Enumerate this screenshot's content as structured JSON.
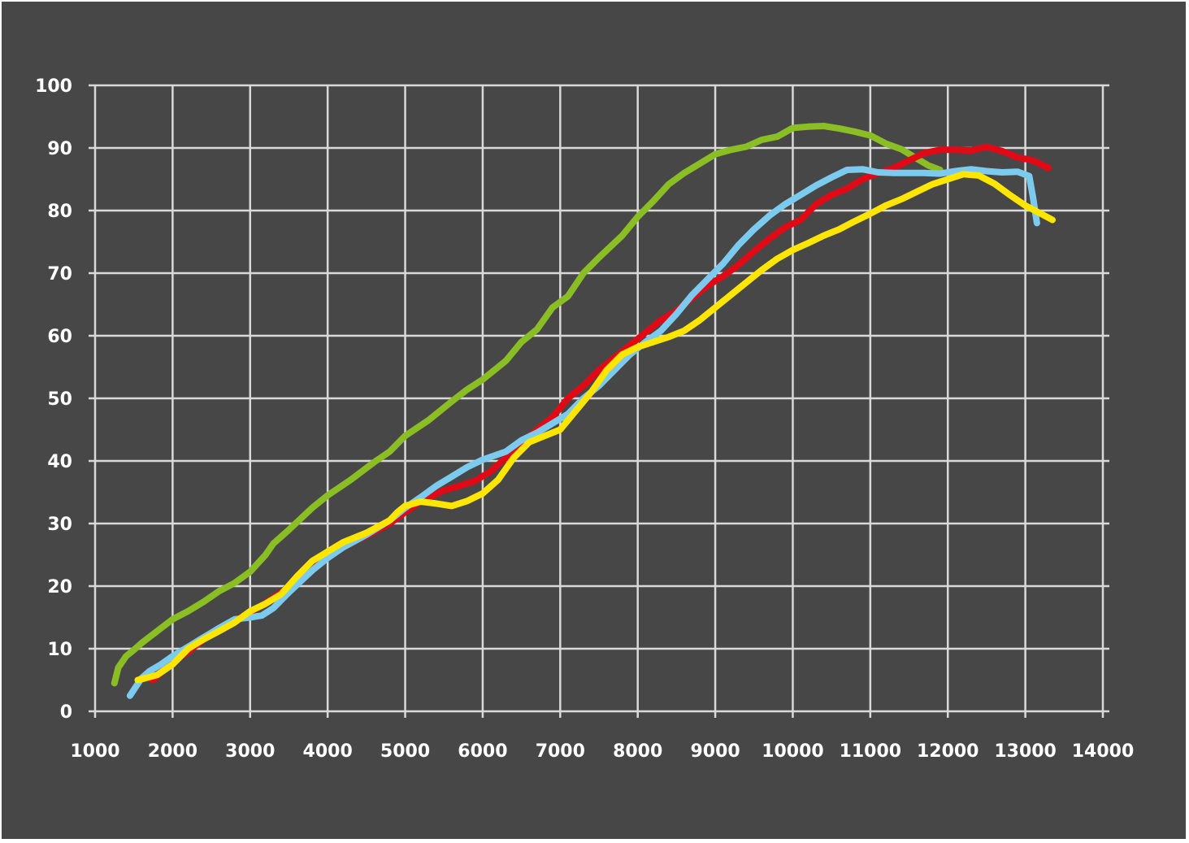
{
  "chart_data": {
    "type": "line",
    "title": "",
    "xlabel": "",
    "ylabel": "",
    "xlim": [
      1000,
      14000
    ],
    "ylim": [
      0,
      100
    ],
    "x_ticks": [
      1000,
      2000,
      3000,
      4000,
      5000,
      6000,
      7000,
      8000,
      9000,
      10000,
      11000,
      12000,
      13000,
      14000
    ],
    "y_ticks": [
      0,
      10,
      20,
      30,
      40,
      50,
      60,
      70,
      80,
      90,
      100
    ],
    "grid": true,
    "legend": "none",
    "colors": {
      "background": "#474747",
      "grid": "#d9d9d9",
      "text": "#ffffff"
    },
    "series": [
      {
        "color": "#8bbd25",
        "points": [
          [
            1250,
            4.5
          ],
          [
            1300,
            7
          ],
          [
            1400,
            8.8
          ],
          [
            1500,
            9.8
          ],
          [
            1600,
            10.9
          ],
          [
            1800,
            12.8
          ],
          [
            2000,
            14.7
          ],
          [
            2200,
            16
          ],
          [
            2400,
            17.5
          ],
          [
            2600,
            19.2
          ],
          [
            2800,
            20.5
          ],
          [
            3000,
            22.3
          ],
          [
            3200,
            25
          ],
          [
            3300,
            26.8
          ],
          [
            3500,
            29
          ],
          [
            3800,
            32.5
          ],
          [
            4000,
            34.5
          ],
          [
            4300,
            37
          ],
          [
            4600,
            39.8
          ],
          [
            4800,
            41.5
          ],
          [
            5000,
            44
          ],
          [
            5300,
            46.5
          ],
          [
            5600,
            49.5
          ],
          [
            5800,
            51.4
          ],
          [
            6000,
            53
          ],
          [
            6300,
            56
          ],
          [
            6500,
            59
          ],
          [
            6700,
            61
          ],
          [
            6900,
            64.5
          ],
          [
            7100,
            66.3
          ],
          [
            7300,
            70
          ],
          [
            7500,
            72.5
          ],
          [
            7800,
            76
          ],
          [
            8000,
            79
          ],
          [
            8200,
            81.5
          ],
          [
            8400,
            84.2
          ],
          [
            8600,
            86
          ],
          [
            8800,
            87.5
          ],
          [
            9000,
            89
          ],
          [
            9200,
            89.7
          ],
          [
            9400,
            90.2
          ],
          [
            9600,
            91.3
          ],
          [
            9800,
            91.8
          ],
          [
            10000,
            93.2
          ],
          [
            10200,
            93.4
          ],
          [
            10400,
            93.5
          ],
          [
            10600,
            93.1
          ],
          [
            10800,
            92.6
          ],
          [
            11000,
            92
          ],
          [
            11200,
            90.7
          ],
          [
            11400,
            89.8
          ],
          [
            11600,
            88.3
          ],
          [
            11750,
            87.2
          ],
          [
            11900,
            86.5
          ]
        ]
      },
      {
        "color": "#e00a17",
        "points": [
          [
            1650,
            5.5
          ],
          [
            1750,
            5
          ],
          [
            2000,
            8
          ],
          [
            2200,
            9.5
          ],
          [
            2400,
            11.5
          ],
          [
            2600,
            13
          ],
          [
            2800,
            14.5
          ],
          [
            3000,
            15.8
          ],
          [
            3200,
            17.3
          ],
          [
            3400,
            19
          ],
          [
            3600,
            21
          ],
          [
            3800,
            22.5
          ],
          [
            4000,
            24.8
          ],
          [
            4200,
            26.5
          ],
          [
            4500,
            28
          ],
          [
            4800,
            30
          ],
          [
            5000,
            31.8
          ],
          [
            5200,
            33.5
          ],
          [
            5500,
            35.3
          ],
          [
            5700,
            36
          ],
          [
            5900,
            36.8
          ],
          [
            6100,
            38.3
          ],
          [
            6300,
            40.5
          ],
          [
            6500,
            42.8
          ],
          [
            6700,
            45
          ],
          [
            6900,
            47
          ],
          [
            7100,
            50
          ],
          [
            7300,
            52
          ],
          [
            7500,
            54.5
          ],
          [
            7700,
            56.5
          ],
          [
            7900,
            58.5
          ],
          [
            8100,
            60.5
          ],
          [
            8300,
            62.5
          ],
          [
            8500,
            64
          ],
          [
            8700,
            66
          ],
          [
            8900,
            68
          ],
          [
            9100,
            69.5
          ],
          [
            9300,
            71.3
          ],
          [
            9500,
            73.5
          ],
          [
            9700,
            75.5
          ],
          [
            9900,
            77.3
          ],
          [
            10100,
            78.5
          ],
          [
            10300,
            81
          ],
          [
            10500,
            82.5
          ],
          [
            10700,
            83.5
          ],
          [
            10900,
            85
          ],
          [
            11100,
            86
          ],
          [
            11300,
            86.8
          ],
          [
            11500,
            88
          ],
          [
            11700,
            89.2
          ],
          [
            11900,
            89.7
          ],
          [
            12100,
            89.7
          ],
          [
            12300,
            89.6
          ],
          [
            12500,
            90.2
          ],
          [
            12700,
            89.5
          ],
          [
            12900,
            88.5
          ],
          [
            13100,
            88
          ],
          [
            13200,
            87.4
          ],
          [
            13300,
            86.8
          ]
        ]
      },
      {
        "color": "#7ccbef",
        "points": [
          [
            1450,
            2.5
          ],
          [
            1600,
            5.3
          ],
          [
            1700,
            6.4
          ],
          [
            1850,
            7.5
          ],
          [
            2000,
            8.8
          ],
          [
            2200,
            10.3
          ],
          [
            2400,
            11.8
          ],
          [
            2600,
            13.3
          ],
          [
            2800,
            14.7
          ],
          [
            3000,
            15
          ],
          [
            3150,
            15.3
          ],
          [
            3300,
            16.5
          ],
          [
            3500,
            19
          ],
          [
            3800,
            22.5
          ],
          [
            4000,
            24.5
          ],
          [
            4200,
            26.2
          ],
          [
            4500,
            28.2
          ],
          [
            4800,
            30.5
          ],
          [
            5000,
            32.5
          ],
          [
            5200,
            34.2
          ],
          [
            5400,
            36
          ],
          [
            5600,
            37.5
          ],
          [
            5800,
            39
          ],
          [
            6000,
            40.2
          ],
          [
            6300,
            41.5
          ],
          [
            6500,
            43.3
          ],
          [
            6700,
            44.5
          ],
          [
            6900,
            46
          ],
          [
            7100,
            47.5
          ],
          [
            7300,
            50
          ],
          [
            7500,
            52
          ],
          [
            7700,
            54.5
          ],
          [
            7900,
            57
          ],
          [
            8100,
            59
          ],
          [
            8300,
            60.8
          ],
          [
            8500,
            63.5
          ],
          [
            8700,
            66.5
          ],
          [
            8900,
            69
          ],
          [
            9100,
            71.5
          ],
          [
            9300,
            74.5
          ],
          [
            9500,
            77
          ],
          [
            9700,
            79.2
          ],
          [
            9900,
            81
          ],
          [
            10100,
            82.5
          ],
          [
            10300,
            84
          ],
          [
            10500,
            85.3
          ],
          [
            10700,
            86.5
          ],
          [
            10900,
            86.6
          ],
          [
            11100,
            86.1
          ],
          [
            11300,
            86
          ],
          [
            11500,
            86
          ],
          [
            11700,
            86
          ],
          [
            11900,
            85.9
          ],
          [
            12100,
            86.3
          ],
          [
            12300,
            86.6
          ],
          [
            12500,
            86.3
          ],
          [
            12700,
            86.1
          ],
          [
            12900,
            86.2
          ],
          [
            13050,
            85.5
          ],
          [
            13100,
            82
          ],
          [
            13150,
            78
          ]
        ]
      },
      {
        "color": "#ffe600",
        "points": [
          [
            1550,
            5
          ],
          [
            1650,
            5.3
          ],
          [
            1800,
            5.8
          ],
          [
            2000,
            7.5
          ],
          [
            2200,
            10
          ],
          [
            2400,
            11.5
          ],
          [
            2600,
            12.8
          ],
          [
            2800,
            14.2
          ],
          [
            3000,
            16
          ],
          [
            3200,
            17.2
          ],
          [
            3400,
            18.7
          ],
          [
            3600,
            21.5
          ],
          [
            3800,
            24
          ],
          [
            4000,
            25.5
          ],
          [
            4200,
            27
          ],
          [
            4500,
            28.5
          ],
          [
            4800,
            30.5
          ],
          [
            4900,
            31.8
          ],
          [
            5000,
            32.8
          ],
          [
            5200,
            33.5
          ],
          [
            5400,
            33.2
          ],
          [
            5600,
            32.8
          ],
          [
            5800,
            33.6
          ],
          [
            6000,
            34.8
          ],
          [
            6200,
            37
          ],
          [
            6400,
            40.5
          ],
          [
            6600,
            43
          ],
          [
            6800,
            44
          ],
          [
            7000,
            45
          ],
          [
            7200,
            48
          ],
          [
            7400,
            51
          ],
          [
            7600,
            54.5
          ],
          [
            7800,
            57
          ],
          [
            8000,
            58.2
          ],
          [
            8200,
            59
          ],
          [
            8400,
            59.8
          ],
          [
            8600,
            60.8
          ],
          [
            8800,
            62.5
          ],
          [
            9000,
            64.5
          ],
          [
            9200,
            66.5
          ],
          [
            9400,
            68.5
          ],
          [
            9600,
            70.5
          ],
          [
            9800,
            72.3
          ],
          [
            10000,
            73.7
          ],
          [
            10200,
            74.8
          ],
          [
            10400,
            76
          ],
          [
            10600,
            77
          ],
          [
            10800,
            78.3
          ],
          [
            11000,
            79.5
          ],
          [
            11200,
            80.8
          ],
          [
            11400,
            81.8
          ],
          [
            11600,
            83
          ],
          [
            11800,
            84.2
          ],
          [
            12000,
            85
          ],
          [
            12200,
            85.8
          ],
          [
            12400,
            85.6
          ],
          [
            12600,
            84.3
          ],
          [
            12800,
            82.5
          ],
          [
            13000,
            80.8
          ],
          [
            13200,
            79.5
          ],
          [
            13350,
            78.5
          ]
        ]
      }
    ]
  }
}
